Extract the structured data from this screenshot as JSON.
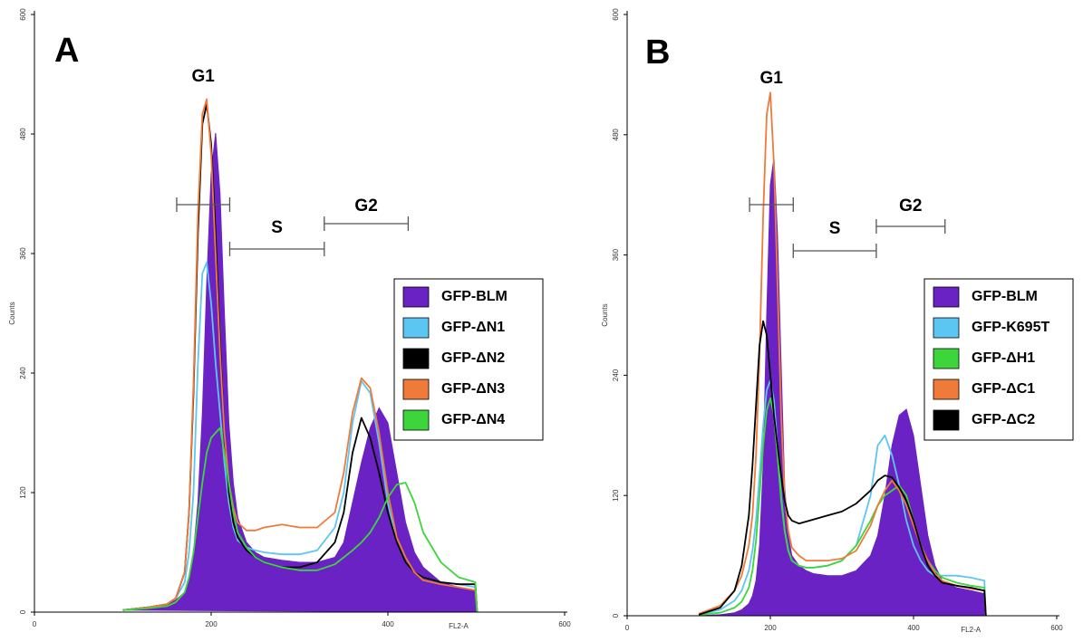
{
  "chart_data": [
    {
      "type": "line",
      "label": "A",
      "xlabel": "FL2-A",
      "ylabel": "Counts",
      "xlim": [
        0,
        600
      ],
      "ylim": [
        0,
        600
      ],
      "xticks": [
        0,
        200,
        400,
        600
      ],
      "yticks": [
        0,
        120,
        240,
        360,
        480,
        600
      ],
      "x": [
        100,
        130,
        150,
        160,
        170,
        175,
        180,
        185,
        190,
        195,
        200,
        205,
        210,
        215,
        220,
        225,
        230,
        240,
        250,
        260,
        280,
        300,
        320,
        340,
        350,
        360,
        370,
        380,
        390,
        400,
        410,
        420,
        430,
        440,
        460,
        480,
        499,
        501
      ],
      "gates": [
        {
          "label": "G1",
          "range": [
            161,
            221
          ]
        },
        {
          "label": "S",
          "range": [
            221,
            328
          ]
        },
        {
          "label": "G2",
          "range": [
            328,
            423
          ]
        }
      ],
      "series": [
        {
          "name": "GFP-BLM",
          "color": "#6a22c4",
          "fill": true,
          "values": [
            2,
            5,
            8,
            12,
            20,
            35,
            60,
            110,
            200,
            330,
            440,
            481,
            420,
            300,
            190,
            130,
            95,
            70,
            60,
            55,
            52,
            50,
            50,
            55,
            70,
            110,
            150,
            185,
            205,
            190,
            140,
            90,
            60,
            45,
            30,
            25,
            22,
            0
          ]
        },
        {
          "name": "GFP-ΔN1",
          "color": "#5cc6f2",
          "fill": false,
          "values": [
            2,
            5,
            8,
            14,
            30,
            60,
            120,
            250,
            340,
            351,
            310,
            250,
            200,
            150,
            110,
            85,
            72,
            65,
            62,
            60,
            58,
            58,
            62,
            85,
            120,
            190,
            232,
            220,
            170,
            110,
            70,
            50,
            40,
            35,
            30,
            28,
            25,
            0
          ]
        },
        {
          "name": "GFP-ΔN2",
          "color": "#000000",
          "fill": false,
          "values": [
            2,
            5,
            8,
            14,
            40,
            100,
            220,
            380,
            490,
            510,
            470,
            380,
            270,
            180,
            120,
            90,
            75,
            62,
            55,
            50,
            45,
            45,
            50,
            70,
            100,
            160,
            195,
            175,
            140,
            100,
            70,
            50,
            40,
            35,
            30,
            28,
            28,
            0
          ]
        },
        {
          "name": "GFP-ΔN3",
          "color": "#f07a3a",
          "fill": false,
          "values": [
            2,
            5,
            8,
            14,
            40,
            100,
            230,
            400,
            500,
            515,
            460,
            360,
            260,
            180,
            130,
            105,
            90,
            82,
            82,
            85,
            88,
            85,
            85,
            100,
            140,
            200,
            235,
            225,
            180,
            120,
            75,
            55,
            40,
            32,
            28,
            25,
            22,
            0
          ]
        },
        {
          "name": "GFP-ΔN4",
          "color": "#3cd63c",
          "fill": false,
          "values": [
            2,
            4,
            6,
            10,
            20,
            35,
            60,
            95,
            130,
            160,
            175,
            180,
            185,
            160,
            130,
            100,
            80,
            65,
            55,
            50,
            45,
            42,
            42,
            48,
            55,
            62,
            70,
            80,
            95,
            115,
            128,
            130,
            110,
            80,
            50,
            35,
            30,
            0
          ]
        }
      ]
    },
    {
      "type": "line",
      "label": "B",
      "xlabel": "FL2-A",
      "ylabel": "Counts",
      "xlim": [
        0,
        600
      ],
      "ylim": [
        0,
        600
      ],
      "xticks": [
        0,
        200,
        400,
        600
      ],
      "yticks": [
        0,
        120,
        240,
        360,
        480,
        600
      ],
      "x": [
        100,
        130,
        150,
        160,
        170,
        175,
        180,
        185,
        190,
        195,
        200,
        205,
        210,
        215,
        220,
        225,
        230,
        240,
        250,
        260,
        280,
        300,
        320,
        340,
        350,
        360,
        370,
        380,
        390,
        400,
        410,
        420,
        430,
        440,
        460,
        480,
        499,
        501
      ],
      "gates": [
        {
          "label": "G1",
          "range": [
            171,
            232
          ]
        },
        {
          "label": "S",
          "range": [
            232,
            348
          ]
        },
        {
          "label": "G2",
          "range": [
            348,
            444
          ]
        }
      ],
      "series": [
        {
          "name": "GFP-BLM",
          "color": "#6a22c4",
          "fill": true,
          "values": [
            0,
            1,
            3,
            6,
            12,
            20,
            35,
            70,
            150,
            300,
            430,
            457,
            380,
            250,
            130,
            80,
            60,
            50,
            45,
            42,
            40,
            40,
            45,
            60,
            80,
            120,
            170,
            200,
            206,
            180,
            130,
            80,
            50,
            35,
            28,
            25,
            22,
            0
          ]
        },
        {
          "name": "GFP-K695T",
          "color": "#5cc6f2",
          "fill": false,
          "values": [
            1,
            6,
            15,
            25,
            45,
            65,
            95,
            140,
            190,
            225,
            235,
            215,
            170,
            120,
            85,
            65,
            55,
            50,
            48,
            48,
            50,
            55,
            70,
            120,
            170,
            180,
            160,
            130,
            95,
            70,
            55,
            45,
            40,
            40,
            40,
            38,
            35,
            0
          ]
        },
        {
          "name": "GFP-ΔH1",
          "color": "#3cd63c",
          "fill": false,
          "values": [
            1,
            3,
            8,
            14,
            28,
            45,
            75,
            120,
            170,
            205,
            217,
            200,
            160,
            115,
            85,
            65,
            55,
            50,
            48,
            48,
            50,
            55,
            70,
            95,
            110,
            120,
            125,
            130,
            120,
            95,
            70,
            55,
            45,
            38,
            33,
            30,
            28,
            0
          ]
        },
        {
          "name": "GFP-ΔC1",
          "color": "#f07a3a",
          "fill": false,
          "values": [
            2,
            10,
            25,
            40,
            70,
            100,
            160,
            260,
            400,
            500,
            522,
            450,
            330,
            200,
            120,
            85,
            68,
            60,
            55,
            55,
            55,
            57,
            65,
            90,
            110,
            125,
            135,
            125,
            110,
            90,
            70,
            55,
            42,
            35,
            30,
            27,
            25,
            0
          ]
        },
        {
          "name": "GFP-ΔC2",
          "color": "#000000",
          "fill": false,
          "values": [
            1,
            8,
            25,
            50,
            100,
            150,
            210,
            270,
            294,
            280,
            240,
            200,
            170,
            140,
            115,
            100,
            95,
            92,
            94,
            96,
            100,
            104,
            112,
            125,
            135,
            140,
            138,
            128,
            115,
            95,
            70,
            50,
            40,
            33,
            30,
            28,
            25,
            0
          ]
        }
      ]
    }
  ]
}
